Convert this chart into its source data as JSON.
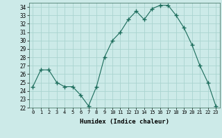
{
  "x": [
    0,
    1,
    2,
    3,
    4,
    5,
    6,
    7,
    8,
    9,
    10,
    11,
    12,
    13,
    14,
    15,
    16,
    17,
    18,
    19,
    20,
    21,
    22,
    23
  ],
  "y": [
    24.5,
    26.5,
    26.5,
    25.0,
    24.5,
    24.5,
    23.5,
    22.2,
    24.5,
    28.0,
    30.0,
    31.0,
    32.5,
    33.5,
    32.5,
    33.8,
    34.2,
    34.2,
    33.0,
    31.5,
    29.5,
    27.0,
    25.0,
    22.2
  ],
  "line_color": "#1a6b5a",
  "marker": "+",
  "marker_size": 4,
  "bg_color": "#cceae8",
  "grid_color": "#aad4d0",
  "xlabel": "Humidex (Indice chaleur)",
  "ylim": [
    22,
    34.5
  ],
  "xlim": [
    -0.5,
    23.5
  ],
  "yticks": [
    22,
    23,
    24,
    25,
    26,
    27,
    28,
    29,
    30,
    31,
    32,
    33,
    34
  ],
  "xticks": [
    0,
    1,
    2,
    3,
    4,
    5,
    6,
    7,
    8,
    9,
    10,
    11,
    12,
    13,
    14,
    15,
    16,
    17,
    18,
    19,
    20,
    21,
    22,
    23
  ],
  "xtick_labels": [
    "0",
    "1",
    "2",
    "3",
    "4",
    "5",
    "6",
    "7",
    "8",
    "9",
    "10",
    "11",
    "12",
    "13",
    "14",
    "15",
    "16",
    "17",
    "18",
    "19",
    "20",
    "21",
    "22",
    "23"
  ]
}
